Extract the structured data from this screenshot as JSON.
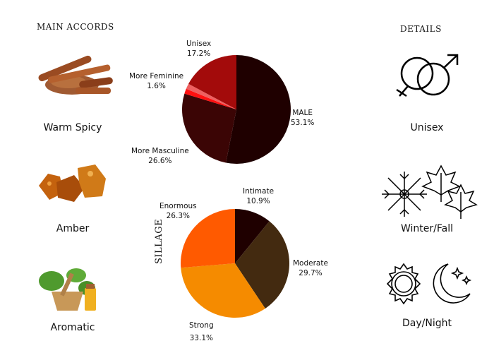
{
  "main_accords": {
    "title": "MAIN ACCORDS",
    "items": [
      {
        "label": "Warm Spicy",
        "icon": "cinnamon-image"
      },
      {
        "label": "Amber",
        "icon": "amber-image"
      },
      {
        "label": "Aromatic",
        "icon": "herbs-image"
      }
    ]
  },
  "details": {
    "title": "DETAILS",
    "items": [
      {
        "label": "Unisex",
        "icon": "gender-symbols-icon"
      },
      {
        "label": "Winter/Fall",
        "icon": "snowflake-leaves-icon"
      },
      {
        "label": "Day/Night",
        "icon": "sun-moon-icon"
      }
    ]
  },
  "sillage_title": "SILLAGE",
  "chart_data": [
    {
      "type": "pie",
      "start": "top-clockwise",
      "slices": [
        {
          "label": "MALE",
          "pct": "53.1%",
          "value": 53.1,
          "color": "#1f0000"
        },
        {
          "label": "More Masculine",
          "pct": "26.6%",
          "value": 26.6,
          "color": "#3b0505"
        },
        {
          "label": "",
          "pct": "",
          "value": 1.5,
          "color": "#ff1010"
        },
        {
          "label": "More Feminine",
          "pct": "1.6%",
          "value": 1.6,
          "color": "#ee6060"
        },
        {
          "label": "Unisex",
          "pct": "17.2%",
          "value": 17.2,
          "color": "#a30b0b"
        }
      ]
    },
    {
      "type": "pie",
      "start": "top-clockwise",
      "slices": [
        {
          "label": "Intimate",
          "pct": "10.9%",
          "value": 10.9,
          "color": "#1f0000"
        },
        {
          "label": "Moderate",
          "pct": "29.7%",
          "value": 29.7,
          "color": "#432a10"
        },
        {
          "label": "Strong",
          "pct": "33.1%",
          "value": 33.1,
          "color": "#f58b00"
        },
        {
          "label": "Enormous",
          "pct": "26.3%",
          "value": 26.3,
          "color": "#ff5a00"
        }
      ]
    }
  ]
}
